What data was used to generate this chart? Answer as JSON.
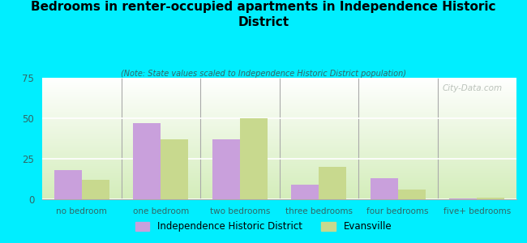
{
  "title": "Bedrooms in renter-occupied apartments in Independence Historic\nDistrict",
  "subtitle": "(Note: State values scaled to Independence Historic District population)",
  "categories": [
    "no bedroom",
    "one bedroom",
    "two bedrooms",
    "three bedrooms",
    "four bedrooms",
    "five+ bedrooms"
  ],
  "independence_values": [
    18,
    47,
    37,
    9,
    13,
    0.5
  ],
  "evansville_values": [
    12,
    37,
    50,
    20,
    6,
    1
  ],
  "independence_color": "#c9a0dc",
  "evansville_color": "#c8d98e",
  "background_color": "#00eeff",
  "ylim": [
    0,
    75
  ],
  "yticks": [
    0,
    25,
    50,
    75
  ],
  "bar_width": 0.35,
  "legend_label_1": "Independence Historic District",
  "legend_label_2": "Evansville",
  "watermark": "City-Data.com"
}
